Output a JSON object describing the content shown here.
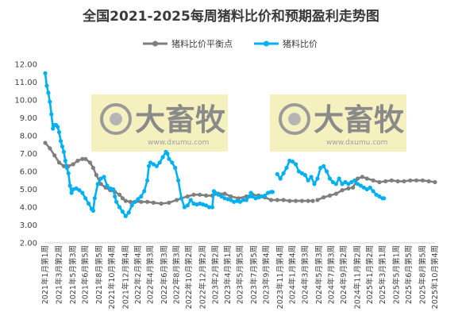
{
  "chart_data": {
    "type": "line",
    "title": "全国2021-2025每周猪料比价和预期盈利走势图",
    "xlabel": "",
    "ylabel": "",
    "ylim": [
      2.0,
      12.0
    ],
    "y_ticks": [
      "2.00",
      "3.00",
      "4.00",
      "5.00",
      "6.00",
      "7.00",
      "8.00",
      "9.00",
      "10.00",
      "11.00",
      "12.00"
    ],
    "x_tick_labels": [
      "2021年1月第1周",
      "2021年3月第2周",
      "2021年5月第3周",
      "2021年6月第5周",
      "2021年8月第5周",
      "2021年10月第4周",
      "2021年12月第4周",
      "2022年2月第4周",
      "2022年4月第3周",
      "2022年6月第3周",
      "2022年8月第3周",
      "2022年10月第2周",
      "2022年12月第2周",
      "2023年2月第2周",
      "2023年4月第1周",
      "2023年5月第5周",
      "2023年7月第5周",
      "2023年9月第4周",
      "2023年11月第4周",
      "2024年1月第4周",
      "2024年3月第3周",
      "2024年5月第3周",
      "2024年7月第3周",
      "2024年9月第2周",
      "2024年11月第2周",
      "2025年1月第2周",
      "2025年3月第1周",
      "2025年5月第1周",
      "2025年6月第5周",
      "2025年8月第5周",
      "2025年10月第4周"
    ],
    "x_tick_weeks": [
      0,
      9,
      18,
      26,
      35,
      43,
      52,
      60,
      68,
      77,
      85,
      93,
      102,
      110,
      118,
      126,
      135,
      143,
      152,
      160,
      168,
      177,
      185,
      193,
      202,
      210,
      218,
      227,
      235,
      244,
      252
    ],
    "legend_position": "top",
    "watermark_brand": "大畜牧",
    "watermark_url": "www.dxumu.com",
    "series": [
      {
        "name": "猪料比价平衡点",
        "color": "#7f7f7f",
        "points": [
          [
            0,
            7.6
          ],
          [
            3,
            7.3
          ],
          [
            6,
            6.9
          ],
          [
            9,
            6.5
          ],
          [
            12,
            6.3
          ],
          [
            15,
            6.3
          ],
          [
            18,
            6.4
          ],
          [
            21,
            6.6
          ],
          [
            24,
            6.7
          ],
          [
            26,
            6.7
          ],
          [
            29,
            6.5
          ],
          [
            31,
            6.2
          ],
          [
            33,
            5.8
          ],
          [
            36,
            5.3
          ],
          [
            39,
            5.1
          ],
          [
            42,
            4.95
          ],
          [
            45,
            4.85
          ],
          [
            48,
            4.7
          ],
          [
            50,
            4.5
          ],
          [
            52,
            4.35
          ],
          [
            55,
            4.3
          ],
          [
            58,
            4.3
          ],
          [
            62,
            4.3
          ],
          [
            66,
            4.3
          ],
          [
            70,
            4.25
          ],
          [
            75,
            4.2
          ],
          [
            80,
            4.25
          ],
          [
            85,
            4.4
          ],
          [
            88,
            4.5
          ],
          [
            92,
            4.6
          ],
          [
            96,
            4.7
          ],
          [
            100,
            4.7
          ],
          [
            104,
            4.65
          ],
          [
            108,
            4.65
          ],
          [
            112,
            4.75
          ],
          [
            116,
            4.75
          ],
          [
            120,
            4.6
          ],
          [
            125,
            4.5
          ],
          [
            130,
            4.6
          ],
          [
            134,
            4.7
          ],
          [
            138,
            4.65
          ],
          [
            142,
            4.55
          ],
          [
            146,
            4.4
          ],
          [
            150,
            4.4
          ],
          [
            154,
            4.4
          ],
          [
            158,
            4.35
          ],
          [
            162,
            4.35
          ],
          [
            166,
            4.35
          ],
          [
            170,
            4.35
          ],
          [
            173,
            4.35
          ]
        ]
      },
      {
        "name": "猪料比价平衡点",
        "color": "#7f7f7f",
        "points": [
          [
            176,
            4.4
          ],
          [
            180,
            4.55
          ],
          [
            184,
            4.65
          ],
          [
            188,
            4.75
          ],
          [
            192,
            4.95
          ],
          [
            196,
            5.05
          ],
          [
            199,
            5.1
          ],
          [
            202,
            5.6
          ],
          [
            205,
            5.7
          ],
          [
            208,
            5.6
          ],
          [
            212,
            5.5
          ],
          [
            216,
            5.4
          ],
          [
            220,
            5.45
          ],
          [
            224,
            5.5
          ],
          [
            228,
            5.45
          ],
          [
            232,
            5.45
          ],
          [
            236,
            5.5
          ],
          [
            240,
            5.5
          ],
          [
            244,
            5.5
          ],
          [
            248,
            5.45
          ],
          [
            252,
            5.4
          ]
        ]
      },
      {
        "name": "猪料比价",
        "color": "#00b0f0",
        "points": [
          [
            0,
            11.5
          ],
          [
            1,
            10.8
          ],
          [
            2,
            10.4
          ],
          [
            3,
            9.9
          ],
          [
            4,
            9.2
          ],
          [
            5,
            8.4
          ],
          [
            6,
            8.6
          ],
          [
            7,
            8.6
          ],
          [
            8,
            8.5
          ],
          [
            9,
            8.2
          ],
          [
            10,
            7.7
          ],
          [
            11,
            7.4
          ],
          [
            12,
            7.1
          ],
          [
            13,
            6.6
          ],
          [
            14,
            6.2
          ],
          [
            15,
            5.9
          ],
          [
            16,
            5.2
          ],
          [
            17,
            4.8
          ],
          [
            18,
            5.0
          ],
          [
            20,
            5.05
          ],
          [
            22,
            4.95
          ],
          [
            24,
            4.8
          ],
          [
            26,
            4.5
          ],
          [
            28,
            4.2
          ],
          [
            30,
            3.9
          ],
          [
            31,
            3.8
          ],
          [
            32,
            4.5
          ],
          [
            34,
            5.3
          ],
          [
            36,
            5.6
          ],
          [
            38,
            5.7
          ],
          [
            40,
            5.2
          ],
          [
            42,
            5.05
          ],
          [
            44,
            5.0
          ],
          [
            45,
            4.6
          ],
          [
            46,
            4.3
          ],
          [
            48,
            4.0
          ],
          [
            50,
            3.75
          ],
          [
            52,
            3.5
          ],
          [
            54,
            3.7
          ],
          [
            56,
            4.1
          ],
          [
            58,
            4.3
          ],
          [
            60,
            4.45
          ],
          [
            62,
            4.6
          ],
          [
            64,
            4.9
          ],
          [
            66,
            5.5
          ],
          [
            67,
            6.3
          ],
          [
            68,
            6.5
          ],
          [
            70,
            6.4
          ],
          [
            72,
            6.3
          ],
          [
            74,
            6.5
          ],
          [
            76,
            6.8
          ],
          [
            78,
            7.1
          ],
          [
            79,
            7.0
          ],
          [
            80,
            6.7
          ],
          [
            82,
            6.5
          ],
          [
            84,
            6.2
          ],
          [
            86,
            5.5
          ],
          [
            88,
            4.5
          ],
          [
            90,
            4.0
          ],
          [
            92,
            4.1
          ],
          [
            94,
            4.4
          ],
          [
            96,
            4.2
          ],
          [
            98,
            4.15
          ],
          [
            100,
            4.2
          ],
          [
            102,
            4.15
          ],
          [
            104,
            4.1
          ],
          [
            106,
            4.0
          ],
          [
            108,
            4.0
          ],
          [
            109,
            4.9
          ],
          [
            110,
            4.8
          ],
          [
            112,
            4.7
          ],
          [
            114,
            4.6
          ],
          [
            116,
            4.5
          ],
          [
            118,
            4.45
          ],
          [
            120,
            4.4
          ],
          [
            122,
            4.3
          ],
          [
            124,
            4.35
          ],
          [
            126,
            4.3
          ],
          [
            128,
            4.4
          ],
          [
            130,
            4.4
          ],
          [
            132,
            4.6
          ],
          [
            133,
            4.8
          ],
          [
            134,
            4.6
          ],
          [
            136,
            4.5
          ],
          [
            138,
            4.55
          ],
          [
            140,
            4.6
          ],
          [
            142,
            4.65
          ],
          [
            144,
            4.8
          ],
          [
            146,
            4.85
          ],
          [
            147,
            4.85
          ]
        ]
      },
      {
        "name": "猪料比价",
        "color": "#00b0f0",
        "points": [
          [
            150,
            5.85
          ],
          [
            152,
            5.6
          ],
          [
            154,
            5.9
          ],
          [
            156,
            6.2
          ],
          [
            158,
            6.6
          ],
          [
            160,
            6.55
          ],
          [
            162,
            6.4
          ],
          [
            164,
            6.0
          ],
          [
            166,
            5.9
          ],
          [
            168,
            5.8
          ],
          [
            170,
            5.5
          ],
          [
            172,
            5.7
          ],
          [
            174,
            5.3
          ],
          [
            176,
            5.6
          ],
          [
            178,
            6.2
          ],
          [
            180,
            6.3
          ],
          [
            182,
            6.0
          ],
          [
            184,
            5.6
          ],
          [
            186,
            5.4
          ],
          [
            188,
            5.3
          ],
          [
            190,
            5.6
          ],
          [
            192,
            5.3
          ],
          [
            194,
            5.4
          ],
          [
            196,
            5.3
          ],
          [
            198,
            5.4
          ],
          [
            200,
            5.5
          ],
          [
            202,
            5.3
          ],
          [
            204,
            5.2
          ],
          [
            206,
            5.1
          ],
          [
            208,
            5.0
          ],
          [
            210,
            5.1
          ],
          [
            212,
            4.9
          ],
          [
            214,
            4.7
          ],
          [
            216,
            4.6
          ],
          [
            218,
            4.5
          ],
          [
            219,
            4.5
          ]
        ]
      }
    ]
  }
}
